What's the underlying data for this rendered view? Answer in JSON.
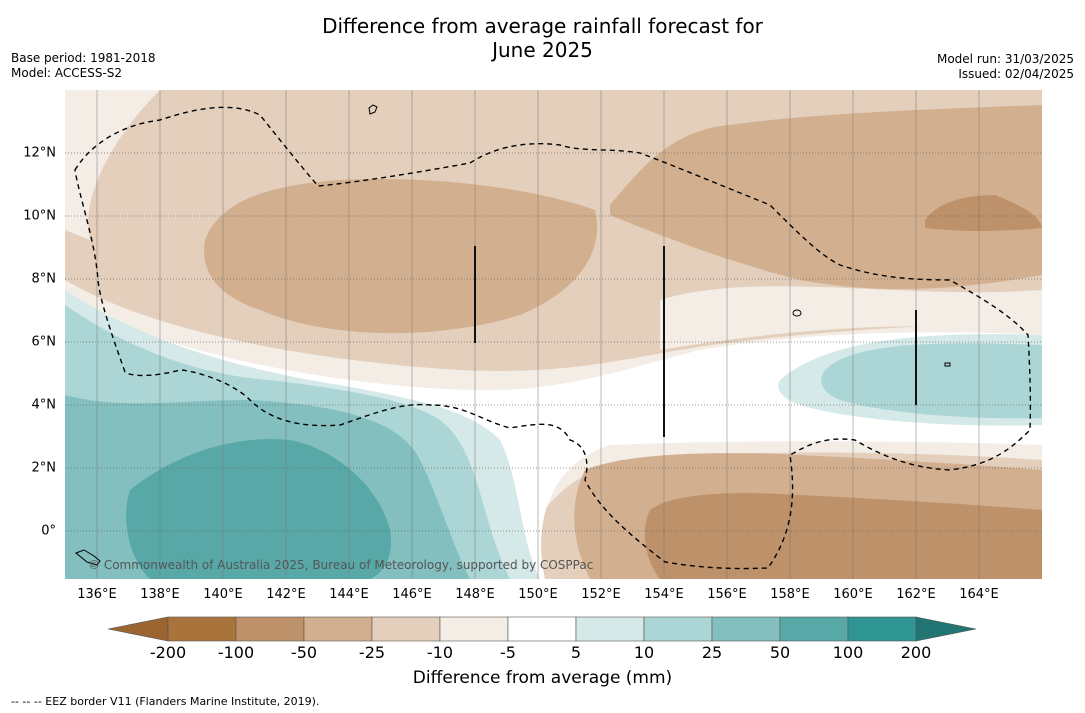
{
  "title": {
    "line1": "Difference from average rainfall forecast for",
    "line2": "June 2025"
  },
  "meta_left": {
    "base_period": "Base period: 1981-2018",
    "model": "Model: ACCESS-S2"
  },
  "meta_right": {
    "model_run": "Model run: 31/03/2025",
    "issued": "Issued: 02/04/2025"
  },
  "map": {
    "longitude_ticks": [
      "136°E",
      "138°E",
      "140°E",
      "142°E",
      "144°E",
      "146°E",
      "148°E",
      "150°E",
      "152°E",
      "154°E",
      "156°E",
      "158°E",
      "160°E",
      "162°E",
      "164°E"
    ],
    "latitude_ticks": [
      "12°N",
      "10°N",
      "8°N",
      "6°N",
      "4°N",
      "2°N",
      "0°"
    ],
    "copyright": "© Commonwealth of Australia 2025, Bureau of Meteorology, supported by COSPPac"
  },
  "colorbar": {
    "labels": [
      "-200",
      "-100",
      "-50",
      "-25",
      "-10",
      "-5",
      "5",
      "10",
      "25",
      "50",
      "100",
      "200"
    ],
    "colors": [
      "#a8743c",
      "#bd9169",
      "#d2b08f",
      "#e3cfbc",
      "#f3ede6",
      "#ffffff",
      "#d4e9e8",
      "#acd5d5",
      "#83bfbf",
      "#58a8a8",
      "#2f9693",
      "#26807d"
    ],
    "end_colors": {
      "low": "#9a6530",
      "high": "#237573"
    },
    "title": "Difference from average (mm)"
  },
  "footnote": "--  --  -- EEZ border V11 (Flanders Marine Institute, 2019)."
}
